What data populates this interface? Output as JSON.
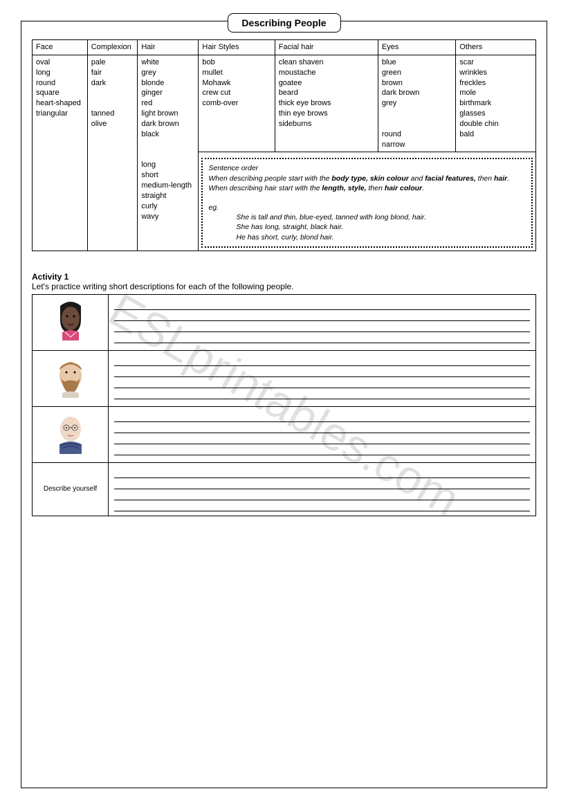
{
  "title": "Describing People",
  "vocab_table": {
    "columns": [
      "Face",
      "Complexion",
      "Hair",
      "Hair Styles",
      "Facial hair",
      "Eyes",
      "Others"
    ],
    "face": [
      "oval",
      "long",
      "round",
      "square",
      "heart-shaped",
      "triangular"
    ],
    "complexion": [
      "pale",
      "fair",
      "dark",
      "",
      "tanned",
      "olive"
    ],
    "hair": [
      "white",
      "grey",
      "blonde",
      "ginger",
      "red",
      "light brown",
      "dark brown",
      "black",
      "",
      "long",
      "short",
      "medium-length",
      "straight",
      "curly",
      "wavy"
    ],
    "hair_styles": [
      "bob",
      "mullet",
      "Mohawk",
      "crew cut",
      "comb-over"
    ],
    "facial_hair": [
      "clean shaven",
      "moustache",
      "goatee",
      "beard",
      "thick eye brows",
      "thin eye brows",
      "sideburns"
    ],
    "eyes": [
      "blue",
      "green",
      "brown",
      "dark brown",
      "grey",
      "",
      "round",
      "narrow"
    ],
    "others": [
      "scar",
      "wrinkles",
      "freckles",
      "mole",
      "birthmark",
      "glasses",
      "double chin",
      "bald"
    ]
  },
  "sentence_order": {
    "heading": "Sentence order",
    "line1_a": "When describing people start with the ",
    "line1_b": "body type, skin colour",
    "line1_c": " and ",
    "line1_d": "facial features,",
    "line1_e": " then ",
    "line1_f": "hair",
    "line1_g": ".",
    "line2_a": "When describing hair start with the ",
    "line2_b": "length, style,",
    "line2_c": " then ",
    "line2_d": "hair colour",
    "line2_e": ".",
    "eg_label": "eg.",
    "eg1": "She is tall and thin, blue-eyed, tanned with long blond, hair.",
    "eg2": "She has long, straight, black hair.",
    "eg3": "He has short, curly, blond hair."
  },
  "activity": {
    "title": "Activity 1",
    "desc": "Let's practice writing short descriptions for each of the following people.",
    "describe_self": "Describe yourself"
  },
  "watermark": "ESLprintables.com",
  "colors": {
    "face1_skin": "#6b4a3a",
    "face1_hair": "#1a1a1a",
    "face1_shirt": "#d94a7a",
    "face2_skin": "#e8c8a8",
    "face2_hair": "#a87848",
    "face3_skin": "#f0d8c8",
    "face3_collar": "#4a5a8a"
  }
}
